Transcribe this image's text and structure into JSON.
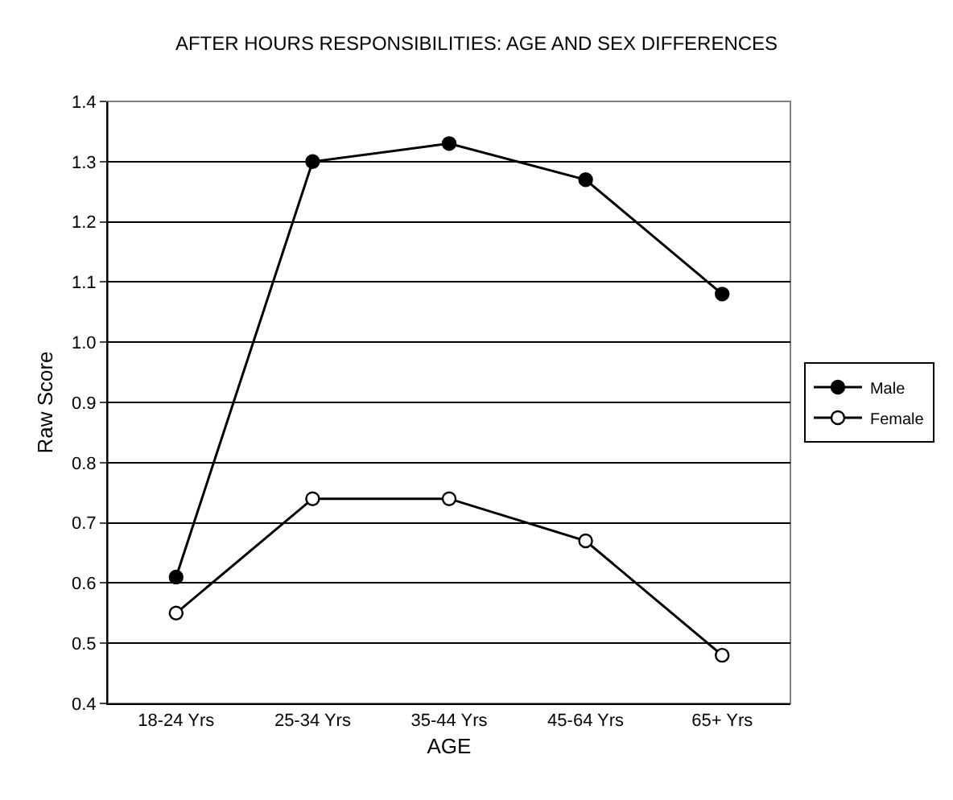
{
  "chart_data": {
    "type": "line",
    "title": "AFTER HOURS RESPONSIBILITIES: AGE AND SEX DIFFERENCES",
    "xlabel": "AGE",
    "ylabel": "Raw Score",
    "categories": [
      "18-24 Yrs",
      "25-34 Yrs",
      "35-44 Yrs",
      "45-64 Yrs",
      "65+ Yrs"
    ],
    "series": [
      {
        "name": "Male",
        "color": "#000000",
        "marker": "circle",
        "values": [
          0.61,
          1.3,
          1.33,
          1.27,
          1.08
        ]
      },
      {
        "name": "Female",
        "color": "#000000",
        "marker": "circle-open",
        "values": [
          0.55,
          0.74,
          0.74,
          0.67,
          0.48
        ]
      }
    ],
    "ylim": [
      0.4,
      1.4
    ],
    "yticks": [
      {
        "value": 0.4,
        "label": "0.4"
      },
      {
        "value": 0.5,
        "label": "0.5"
      },
      {
        "value": 0.6,
        "label": "0.6"
      },
      {
        "value": 0.7,
        "label": "0.7"
      },
      {
        "value": 0.8,
        "label": "0.8"
      },
      {
        "value": 0.9,
        "label": "0.9"
      },
      {
        "value": 1.0,
        "label": "1.0"
      },
      {
        "value": 1.1,
        "label": "1.1"
      },
      {
        "value": 1.2,
        "label": "1.2"
      },
      {
        "value": 1.3,
        "label": "1.3"
      },
      {
        "value": 1.4,
        "label": "1.4"
      }
    ],
    "grid": "y",
    "legend": "right",
    "line_style": "solid"
  }
}
